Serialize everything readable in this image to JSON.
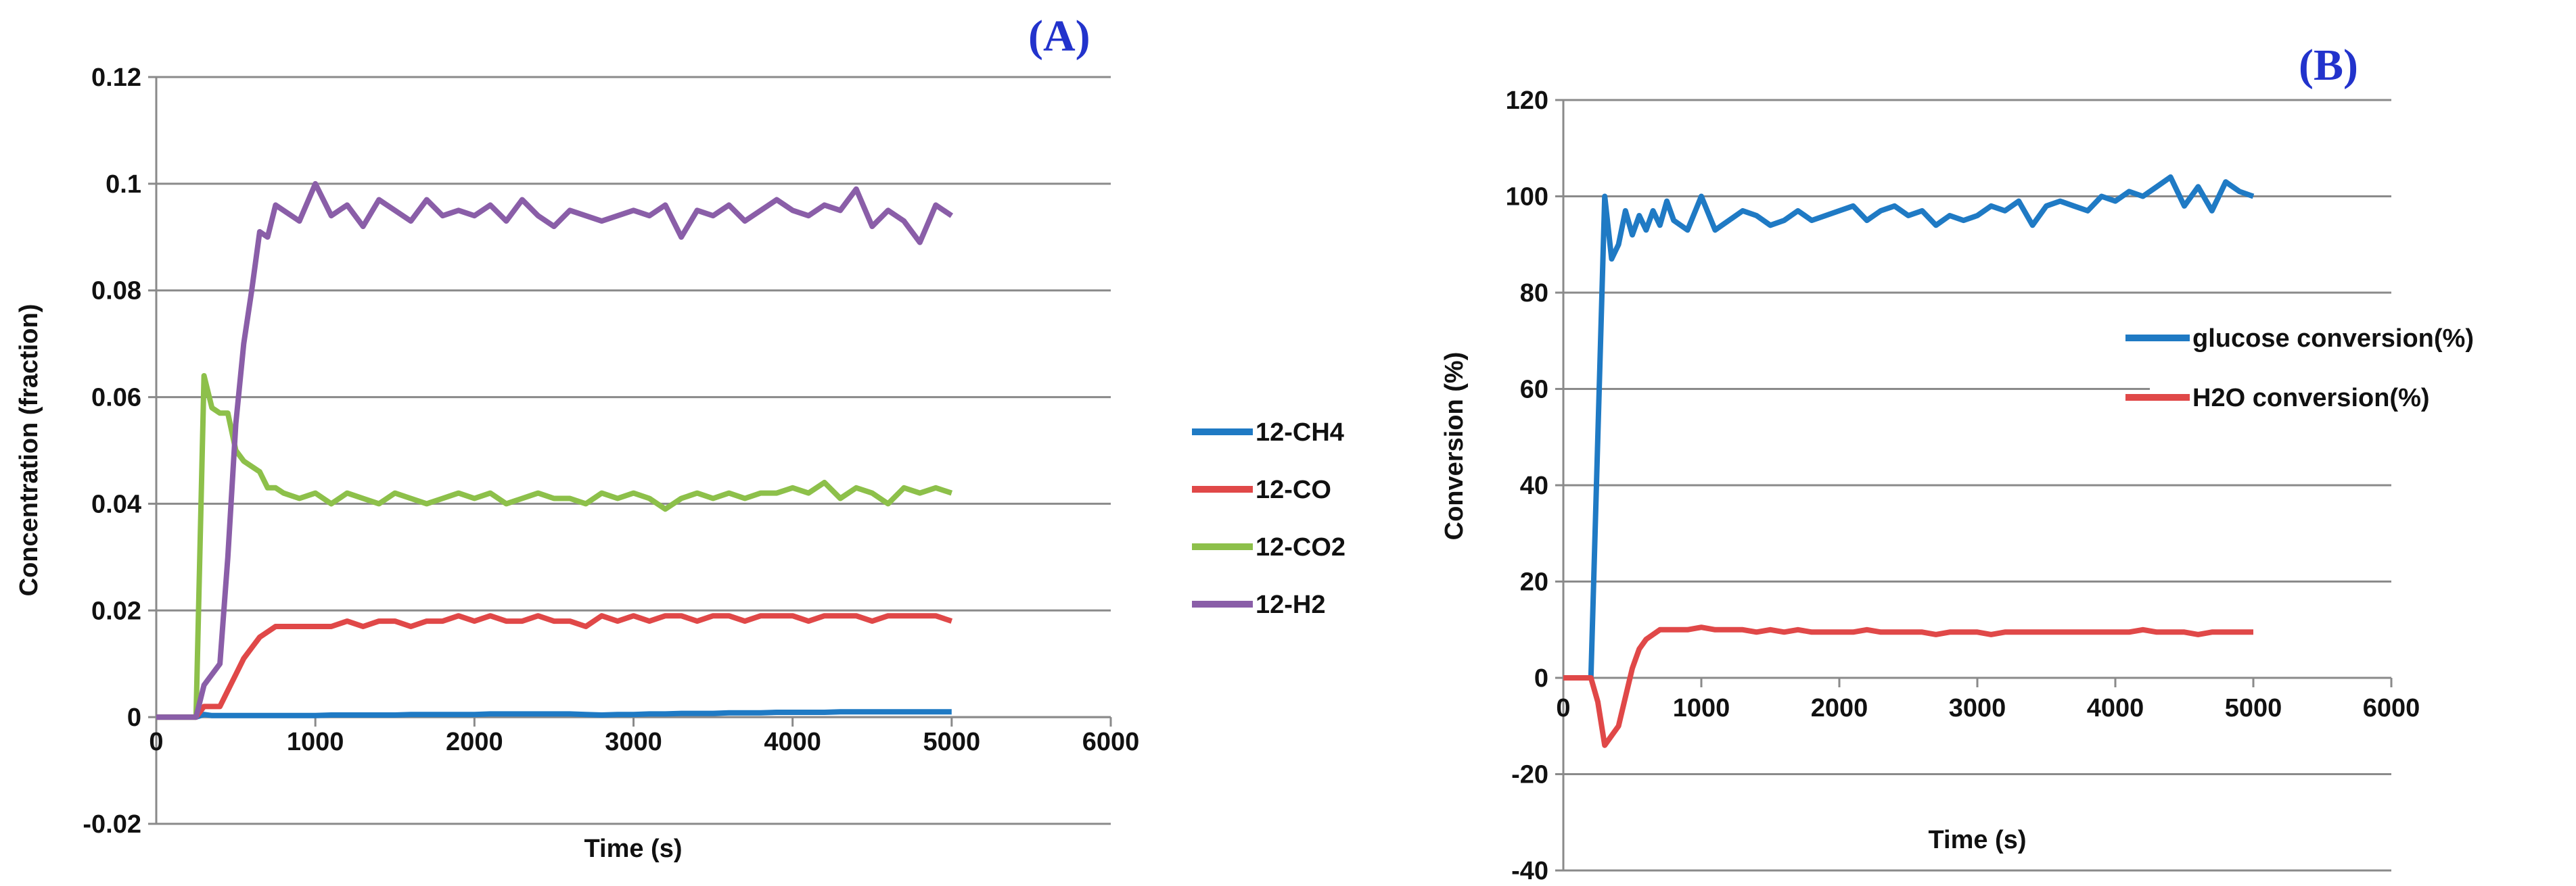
{
  "chart_data": [
    {
      "type": "line",
      "panel_label": "(A)",
      "xlabel": "Time (s)",
      "ylabel": "Concentration (fraction)",
      "xlim": [
        0,
        6000
      ],
      "ylim": [
        -0.02,
        0.12
      ],
      "xticks": [
        0,
        1000,
        2000,
        3000,
        4000,
        5000,
        6000
      ],
      "yticks": [
        -0.02,
        0,
        0.02,
        0.04,
        0.06,
        0.08,
        0.1,
        0.12
      ],
      "ytick_labels": [
        "-0.02",
        "0",
        "0.02",
        "0.04",
        "0.06",
        "0.08",
        "0.1",
        "0.12"
      ],
      "grid": "horizontal",
      "legend": "right",
      "x": [
        0,
        100,
        200,
        250,
        300,
        350,
        400,
        450,
        500,
        550,
        600,
        650,
        700,
        750,
        800,
        900,
        1000,
        1100,
        1200,
        1300,
        1400,
        1500,
        1600,
        1700,
        1800,
        1900,
        2000,
        2100,
        2200,
        2300,
        2400,
        2500,
        2600,
        2700,
        2800,
        2900,
        3000,
        3100,
        3200,
        3300,
        3400,
        3500,
        3600,
        3700,
        3800,
        3900,
        4000,
        4100,
        4200,
        4300,
        4400,
        4500,
        4600,
        4700,
        4800,
        4900,
        5000
      ],
      "series": [
        {
          "name": "12-CH4",
          "color": "#1f7ac4",
          "values": [
            0,
            0,
            0,
            0,
            0.0005,
            0.0003,
            0.0003,
            0.0003,
            0.0003,
            0.0003,
            0.0003,
            0.0003,
            0.0003,
            0.0003,
            0.0003,
            0.0003,
            0.0003,
            0.0004,
            0.0004,
            0.0004,
            0.0004,
            0.0004,
            0.0005,
            0.0005,
            0.0005,
            0.0005,
            0.0005,
            0.0006,
            0.0006,
            0.0006,
            0.0006,
            0.0006,
            0.0006,
            0.0005,
            0.0004,
            0.0005,
            0.0005,
            0.0006,
            0.0006,
            0.0007,
            0.0007,
            0.0007,
            0.0008,
            0.0008,
            0.0008,
            0.0009,
            0.0009,
            0.0009,
            0.0009,
            0.001,
            0.001,
            0.001,
            0.001,
            0.001,
            0.001,
            0.001,
            0.001
          ]
        },
        {
          "name": "12-CO",
          "color": "#e04848",
          "values": [
            0,
            0,
            0,
            0,
            0.002,
            0.002,
            0.002,
            0.005,
            0.008,
            0.011,
            0.013,
            0.015,
            0.016,
            0.017,
            0.017,
            0.017,
            0.017,
            0.017,
            0.018,
            0.017,
            0.018,
            0.018,
            0.017,
            0.018,
            0.018,
            0.019,
            0.018,
            0.019,
            0.018,
            0.018,
            0.019,
            0.018,
            0.018,
            0.017,
            0.019,
            0.018,
            0.019,
            0.018,
            0.019,
            0.019,
            0.018,
            0.019,
            0.019,
            0.018,
            0.019,
            0.019,
            0.019,
            0.018,
            0.019,
            0.019,
            0.019,
            0.018,
            0.019,
            0.019,
            0.019,
            0.019,
            0.018
          ]
        },
        {
          "name": "12-CO2",
          "color": "#8dc04a",
          "values": [
            0,
            0,
            0,
            0,
            0.064,
            0.058,
            0.057,
            0.057,
            0.05,
            0.048,
            0.047,
            0.046,
            0.043,
            0.043,
            0.042,
            0.041,
            0.042,
            0.04,
            0.042,
            0.041,
            0.04,
            0.042,
            0.041,
            0.04,
            0.041,
            0.042,
            0.041,
            0.042,
            0.04,
            0.041,
            0.042,
            0.041,
            0.041,
            0.04,
            0.042,
            0.041,
            0.042,
            0.041,
            0.039,
            0.041,
            0.042,
            0.041,
            0.042,
            0.041,
            0.042,
            0.042,
            0.043,
            0.042,
            0.044,
            0.041,
            0.043,
            0.042,
            0.04,
            0.043,
            0.042,
            0.043,
            0.042
          ]
        },
        {
          "name": "12-H2",
          "color": "#8a5ea8",
          "values": [
            0,
            0,
            0,
            0,
            0.006,
            0.008,
            0.01,
            0.03,
            0.055,
            0.07,
            0.08,
            0.091,
            0.09,
            0.096,
            0.095,
            0.093,
            0.1,
            0.094,
            0.096,
            0.092,
            0.097,
            0.095,
            0.093,
            0.097,
            0.094,
            0.095,
            0.094,
            0.096,
            0.093,
            0.097,
            0.094,
            0.092,
            0.095,
            0.094,
            0.093,
            0.094,
            0.095,
            0.094,
            0.096,
            0.09,
            0.095,
            0.094,
            0.096,
            0.093,
            0.095,
            0.097,
            0.095,
            0.094,
            0.096,
            0.095,
            0.099,
            0.092,
            0.095,
            0.093,
            0.089,
            0.096,
            0.094
          ]
        }
      ]
    },
    {
      "type": "line",
      "panel_label": "(B)",
      "xlabel": "Time (s)",
      "ylabel": "Conversion (%)",
      "xlim": [
        0,
        6000
      ],
      "ylim": [
        -40,
        120
      ],
      "xticks": [
        0,
        1000,
        2000,
        3000,
        4000,
        5000,
        6000
      ],
      "yticks": [
        -40,
        -20,
        0,
        20,
        40,
        60,
        80,
        100,
        120
      ],
      "ytick_labels": [
        "-40",
        "-20",
        "0",
        "20",
        "40",
        "60",
        "80",
        "100",
        "120"
      ],
      "grid": "horizontal",
      "legend": "right",
      "x": [
        0,
        100,
        200,
        250,
        300,
        350,
        400,
        450,
        500,
        550,
        600,
        650,
        700,
        750,
        800,
        900,
        1000,
        1100,
        1200,
        1300,
        1400,
        1500,
        1600,
        1700,
        1800,
        1900,
        2000,
        2100,
        2200,
        2300,
        2400,
        2500,
        2600,
        2700,
        2800,
        2900,
        3000,
        3100,
        3200,
        3300,
        3400,
        3500,
        3600,
        3700,
        3800,
        3900,
        4000,
        4100,
        4200,
        4300,
        4400,
        4500,
        4600,
        4700,
        4800,
        4900,
        5000
      ],
      "series": [
        {
          "name": "glucose conversion(%)",
          "color": "#1f7ac4",
          "values": [
            0,
            0,
            0,
            50,
            100,
            87,
            90,
            97,
            92,
            96,
            93,
            97,
            94,
            99,
            95,
            93,
            100,
            93,
            95,
            97,
            96,
            94,
            95,
            97,
            95,
            96,
            97,
            98,
            95,
            97,
            98,
            96,
            97,
            94,
            96,
            95,
            96,
            98,
            97,
            99,
            94,
            98,
            99,
            98,
            97,
            100,
            99,
            101,
            100,
            102,
            104,
            98,
            102,
            97,
            103,
            101,
            100
          ]
        },
        {
          "name": "H2O conversion(%)",
          "color": "#e04848",
          "values": [
            0,
            0,
            0,
            -5,
            -14,
            -12,
            -10,
            -4,
            2,
            6,
            8,
            9,
            10,
            10,
            10,
            10,
            10.5,
            10,
            10,
            10,
            9.5,
            10,
            9.5,
            10,
            9.5,
            9.5,
            9.5,
            9.5,
            10,
            9.5,
            9.5,
            9.5,
            9.5,
            9,
            9.5,
            9.5,
            9.5,
            9,
            9.5,
            9.5,
            9.5,
            9.5,
            9.5,
            9.5,
            9.5,
            9.5,
            9.5,
            9.5,
            10,
            9.5,
            9.5,
            9.5,
            9,
            9.5,
            9.5,
            9.5,
            9.5
          ]
        }
      ]
    }
  ]
}
